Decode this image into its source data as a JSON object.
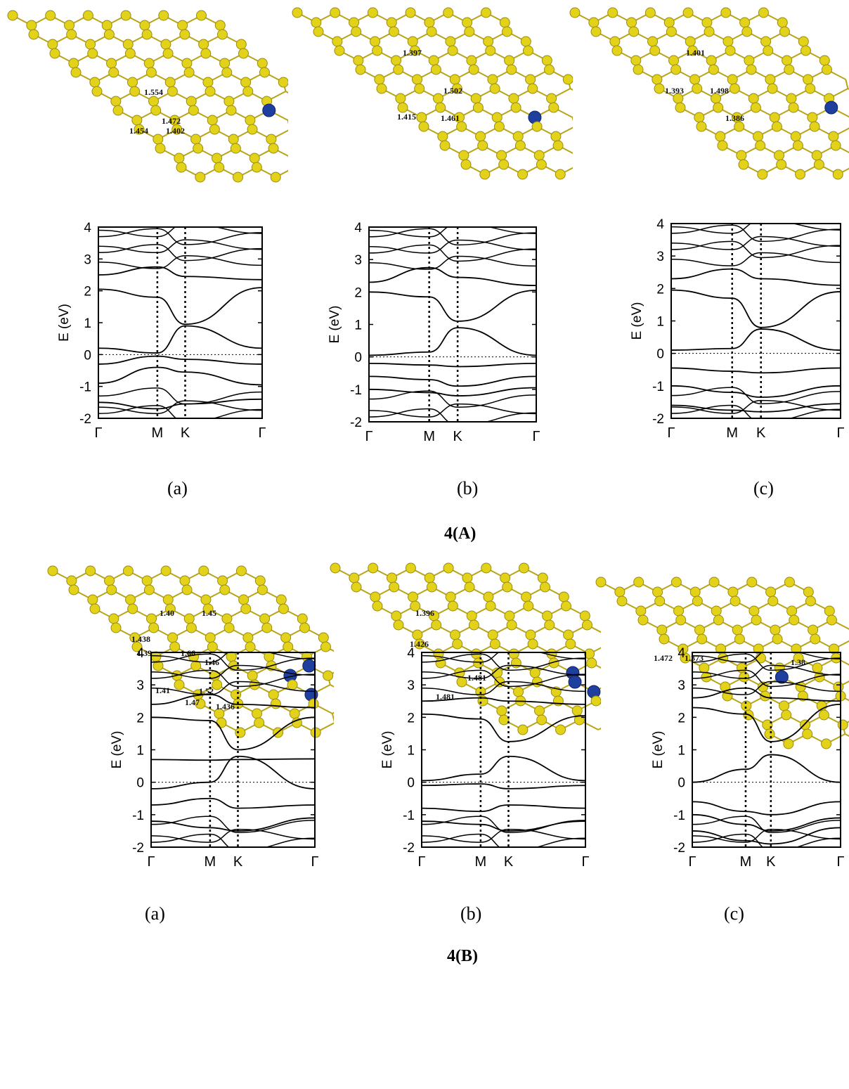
{
  "colors": {
    "carbon": "#e2d21a",
    "carbon_bond": "#b8a414",
    "dopant": "#1f3f9e",
    "band": "#000000"
  },
  "group_labels": {
    "A": "4(A)",
    "B": "4(B)"
  },
  "panels": [
    {
      "id": "A-a",
      "sub_label": "(a)",
      "bond_labels": [
        "1.554",
        "1.472",
        "1.454",
        "1.402"
      ]
    },
    {
      "id": "A-b",
      "sub_label": "(b)",
      "bond_labels": [
        "1.397",
        "1.502",
        "1.415",
        "1.461"
      ]
    },
    {
      "id": "A-c",
      "sub_label": "(c)",
      "bond_labels": [
        "1.401",
        "1.393",
        "1.498",
        "1.386"
      ]
    },
    {
      "id": "B-a",
      "sub_label": "(a)",
      "bond_labels": [
        "1.40",
        "1.45",
        "1.438",
        "1.39",
        "1.66",
        "1.46",
        "1.41",
        "1.52",
        "1.47",
        "1.436"
      ]
    },
    {
      "id": "B-b",
      "sub_label": "(b)",
      "bond_labels": [
        "1.396",
        "1.426",
        "1.481",
        "1.481"
      ]
    },
    {
      "id": "B-c",
      "sub_label": "(c)",
      "bond_labels": [
        "1.472",
        "1.373",
        "1.38"
      ]
    }
  ],
  "chart_data": [
    {
      "type": "line",
      "panel": "A-a",
      "ylabel": "E (eV)",
      "ylim": [
        -2,
        4
      ],
      "yticks": [
        "4",
        "3",
        "2",
        "1",
        "0",
        "-1",
        "-2"
      ],
      "x_labels": [
        "Γ",
        "M",
        "K",
        "Γ"
      ],
      "series": [
        {
          "values": [
            2.05,
            1.8,
            0.95,
            2.1
          ]
        },
        {
          "values": [
            0.2,
            0.05,
            0.9,
            0.2
          ]
        },
        {
          "values": [
            -0.3,
            -0.05,
            -0.15,
            -0.3
          ]
        },
        {
          "values": [
            -0.9,
            -0.4,
            -0.55,
            -0.95
          ]
        },
        {
          "values": [
            -1.5,
            -1.7,
            -1.55,
            -1.4
          ]
        },
        {
          "values": [
            2.5,
            2.75,
            2.45,
            2.35
          ]
        }
      ]
    },
    {
      "type": "line",
      "panel": "A-b",
      "ylabel": "E (eV)",
      "ylim": [
        -2,
        4
      ],
      "yticks": [
        "4",
        "3",
        "2",
        "1",
        "0",
        "-1",
        "-2"
      ],
      "x_labels": [
        "Γ",
        "M",
        "K",
        "Γ"
      ],
      "series": [
        {
          "values": [
            2.0,
            1.85,
            1.1,
            2.05
          ]
        },
        {
          "values": [
            0.05,
            0.15,
            0.9,
            0.05
          ]
        },
        {
          "values": [
            -0.2,
            -0.25,
            -0.3,
            -0.2
          ]
        },
        {
          "values": [
            -0.6,
            -0.7,
            -0.9,
            -0.6
          ]
        },
        {
          "values": [
            -1.0,
            -1.1,
            -1.2,
            -0.95
          ]
        },
        {
          "values": [
            2.3,
            2.75,
            2.45,
            2.2
          ]
        }
      ]
    },
    {
      "type": "line",
      "panel": "A-c",
      "ylabel": "E (eV)",
      "ylim": [
        -2,
        4
      ],
      "yticks": [
        "4",
        "3",
        "2",
        "1",
        "0",
        "-1",
        "-2"
      ],
      "x_labels": [
        "Γ",
        "M",
        "K",
        "Γ"
      ],
      "series": [
        {
          "values": [
            1.95,
            1.7,
            0.8,
            1.9
          ]
        },
        {
          "values": [
            0.1,
            0.15,
            0.75,
            0.1
          ]
        },
        {
          "values": [
            -0.45,
            -0.55,
            -0.6,
            -0.45
          ]
        },
        {
          "values": [
            -1.0,
            -1.2,
            -1.35,
            -1.0
          ]
        },
        {
          "values": [
            -1.6,
            -1.75,
            -1.8,
            -1.55
          ]
        },
        {
          "values": [
            2.3,
            2.6,
            2.3,
            2.1
          ]
        }
      ]
    },
    {
      "type": "line",
      "panel": "B-a",
      "ylabel": "E (eV)",
      "ylim": [
        -2,
        4
      ],
      "yticks": [
        "4",
        "3",
        "2",
        "1",
        "0",
        "-1",
        "-2"
      ],
      "x_labels": [
        "Γ",
        "M",
        "K",
        "Γ"
      ],
      "series": [
        {
          "values": [
            2.0,
            1.9,
            1.0,
            2.0
          ]
        },
        {
          "values": [
            0.7,
            0.68,
            0.7,
            0.72
          ]
        },
        {
          "values": [
            -0.2,
            0.0,
            0.8,
            -0.2
          ]
        },
        {
          "values": [
            -0.7,
            -0.5,
            -0.8,
            -0.7
          ]
        },
        {
          "values": [
            -1.2,
            -1.4,
            -1.5,
            -1.1
          ]
        },
        {
          "values": [
            2.4,
            2.7,
            2.4,
            2.3
          ]
        }
      ]
    },
    {
      "type": "line",
      "panel": "B-b",
      "ylabel": "E (eV)",
      "ylim": [
        -2,
        4
      ],
      "yticks": [
        "4",
        "3",
        "2",
        "1",
        "0",
        "-1",
        "-2"
      ],
      "x_labels": [
        "Γ",
        "M",
        "K",
        "Γ"
      ],
      "series": [
        {
          "values": [
            2.1,
            1.95,
            1.25,
            2.05
          ]
        },
        {
          "values": [
            0.05,
            0.25,
            0.8,
            0.05
          ]
        },
        {
          "values": [
            -0.1,
            -0.05,
            -0.2,
            -0.1
          ]
        },
        {
          "values": [
            -0.8,
            -0.9,
            -0.7,
            -0.8
          ]
        },
        {
          "values": [
            -1.2,
            -1.3,
            -1.5,
            -1.2
          ]
        },
        {
          "values": [
            2.5,
            2.6,
            2.5,
            2.4
          ]
        }
      ]
    },
    {
      "type": "line",
      "panel": "B-c",
      "ylabel": "E (eV)",
      "ylim": [
        -2,
        4
      ],
      "yticks": [
        "4",
        "3",
        "2",
        "1",
        "0",
        "-1",
        "-2"
      ],
      "x_labels": [
        "Γ",
        "M",
        "K",
        "Γ"
      ],
      "series": [
        {
          "values": [
            2.3,
            2.1,
            1.25,
            2.4
          ]
        },
        {
          "values": [
            0.0,
            0.4,
            0.85,
            0.0
          ]
        },
        {
          "values": [
            -0.6,
            -0.9,
            -1.0,
            -0.6
          ]
        },
        {
          "values": [
            -1.0,
            -1.3,
            -1.5,
            -1.1
          ]
        },
        {
          "values": [
            -1.5,
            -1.8,
            -1.9,
            -1.4
          ]
        },
        {
          "values": [
            2.6,
            2.9,
            2.6,
            2.5
          ]
        }
      ]
    }
  ]
}
